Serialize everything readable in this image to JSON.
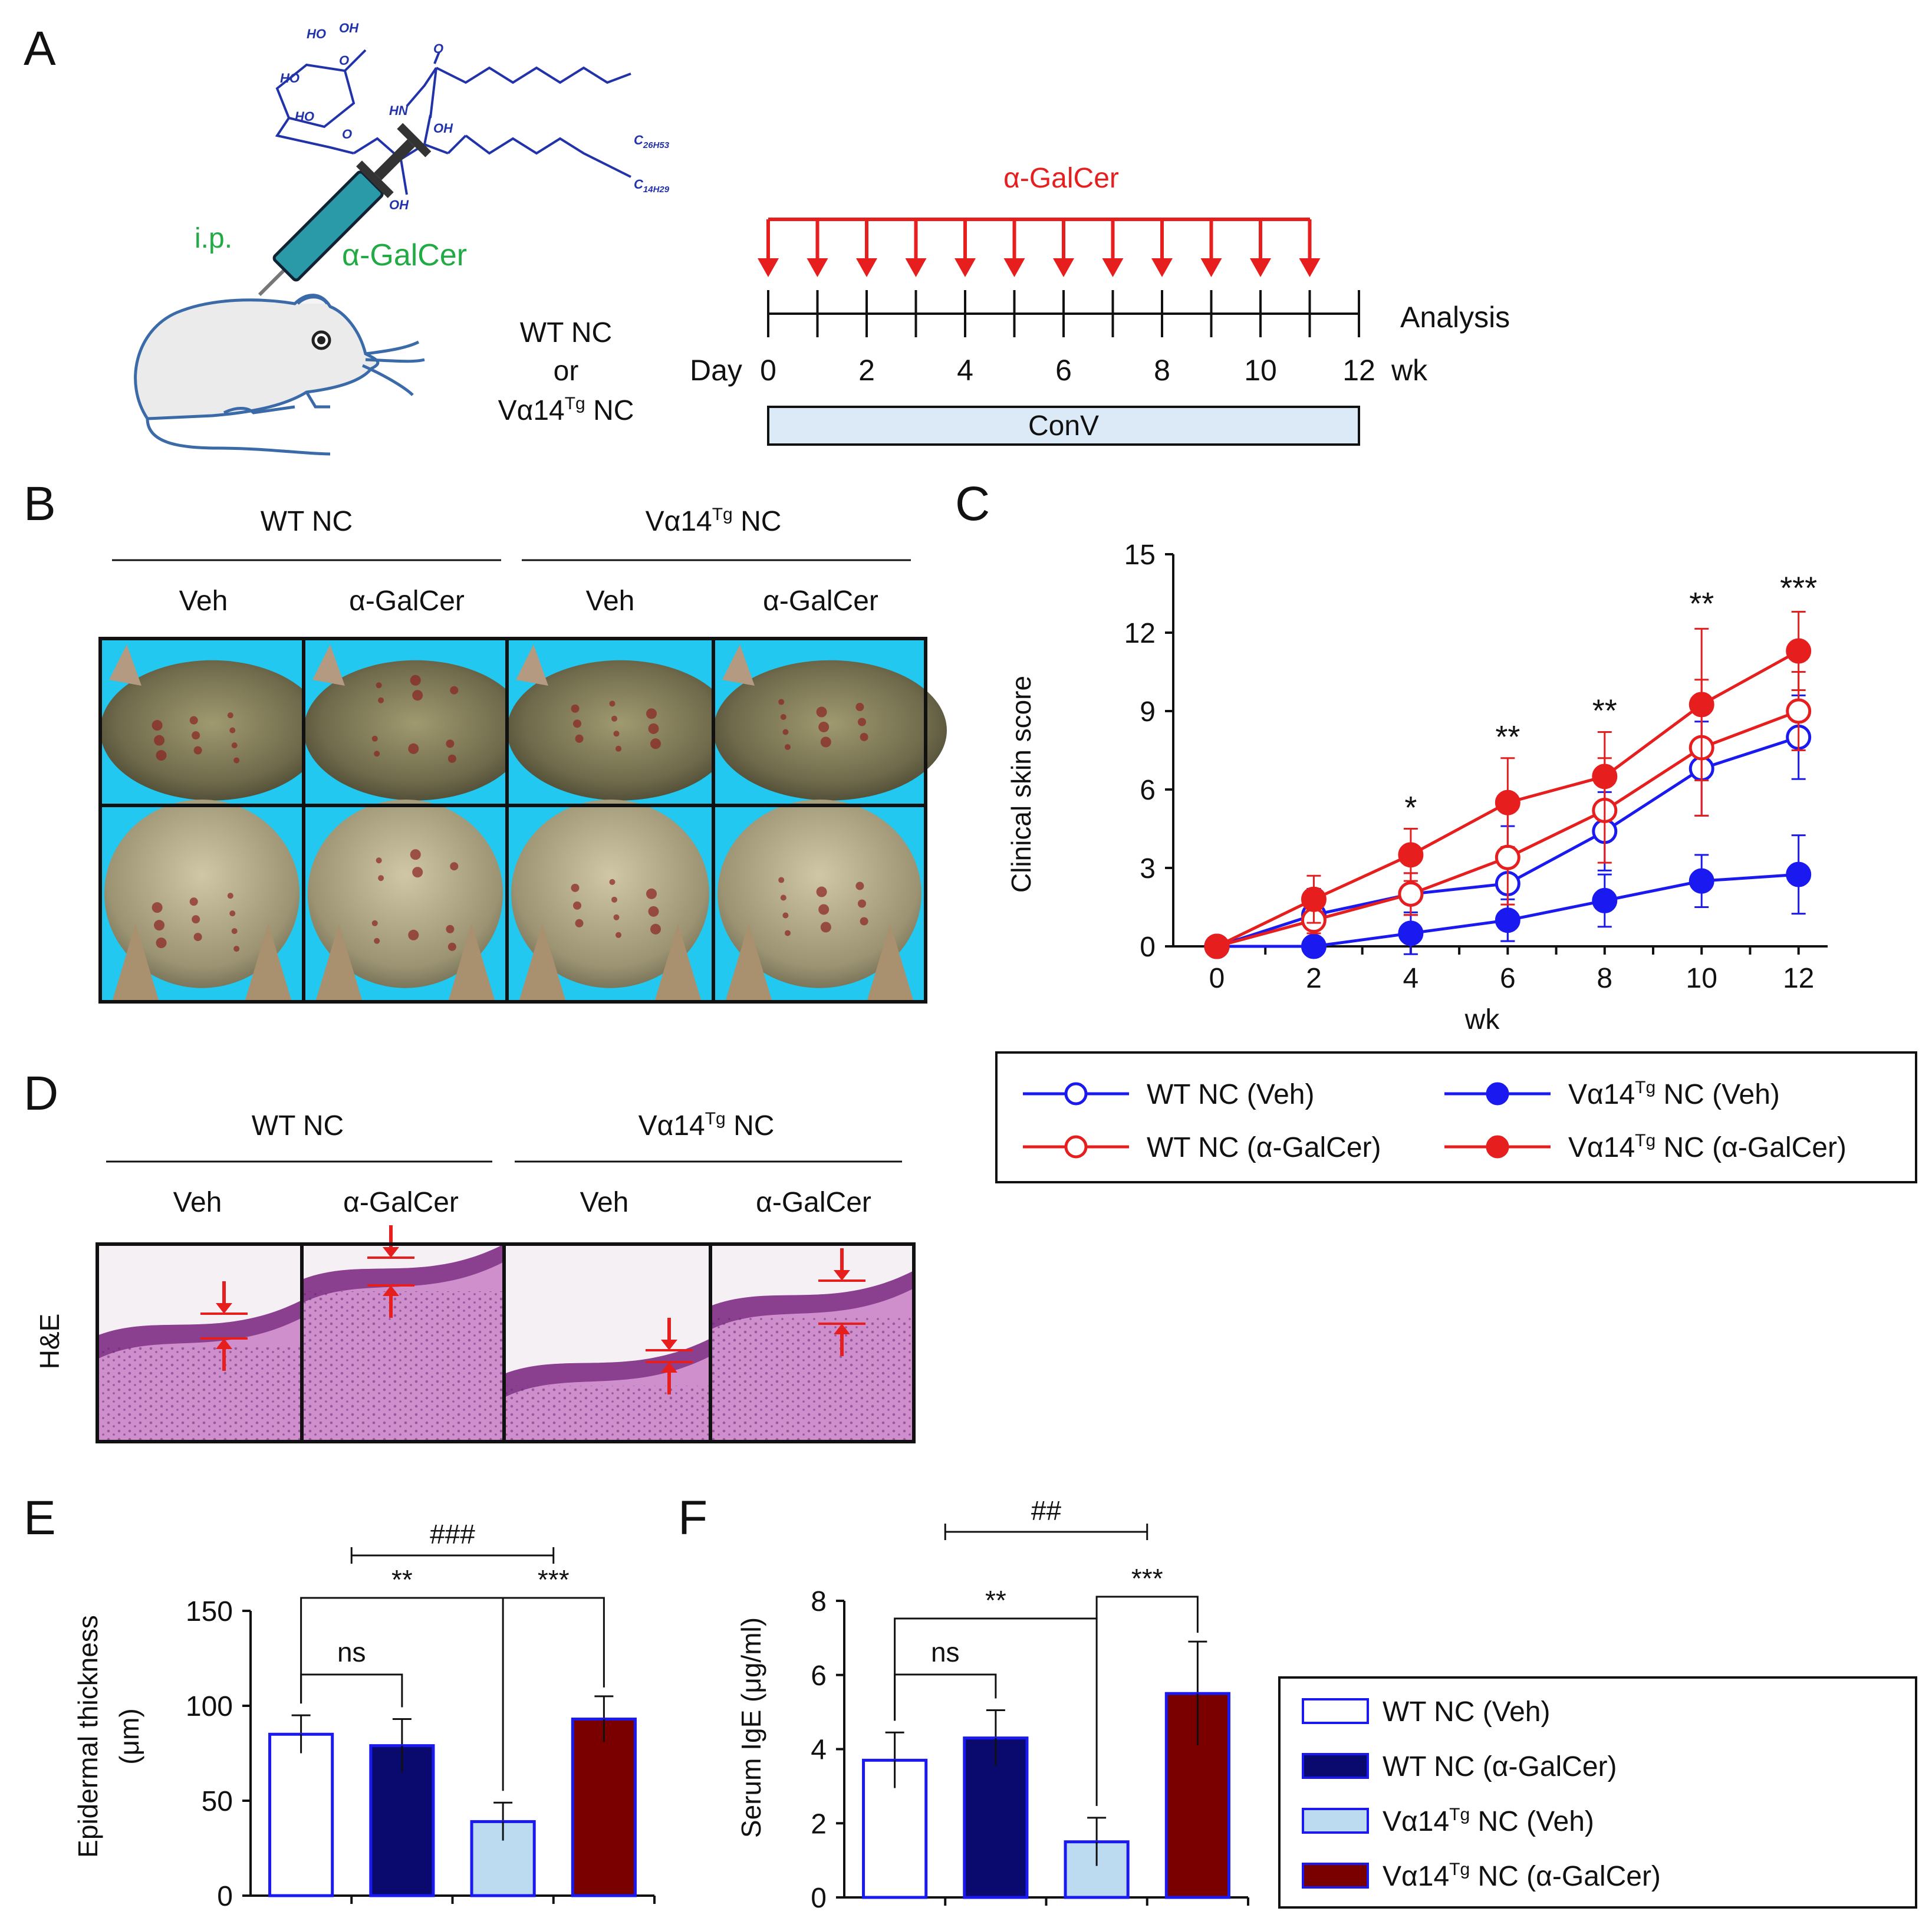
{
  "panels": {
    "A": "A",
    "B": "B",
    "C": "C",
    "D": "D",
    "E": "E",
    "F": "F"
  },
  "colors": {
    "blue": "#1a1af0",
    "red": "#e61e1e",
    "navy": "#0a0a6e",
    "lightblue": "#bcdaf0",
    "maroon": "#7a0000",
    "teal": "#2a9aa8",
    "sky": "#22c8f0",
    "schematic_green": "#22aa44",
    "molecule": "#2233aa"
  },
  "panelA": {
    "route": "i.p.",
    "drug": "α-GalCer",
    "group_line1": "WT NC",
    "group_line2": "or",
    "group_line3": "Vα14",
    "group_line3_sup": "Tg",
    "group_line3_tail": " NC",
    "timeline_title": "α-GalCer",
    "analysis": "Analysis",
    "day_label": "Day",
    "ticks": [
      "0",
      "2",
      "4",
      "6",
      "8",
      "10",
      "12"
    ],
    "unit": "wk",
    "bar_label": "ConV",
    "injection_weeks": [
      0,
      1,
      2,
      3,
      4,
      5,
      6,
      7,
      8,
      9,
      10,
      11
    ],
    "molecule_labels": {
      "ho1": "HO",
      "oh1": "OH",
      "ho2": "HO",
      "o1": "O",
      "ho3": "HO",
      "o2": "O",
      "hn": "HN",
      "o3": "O",
      "oh2": "OH",
      "oh3": "OH",
      "c1": "C",
      "c1_sub": "26H53",
      "c2": "C",
      "c2_sub": "14H29"
    }
  },
  "panelB": {
    "group1": "WT NC",
    "group2_main": "Vα14",
    "group2_sup": "Tg",
    "group2_tail": " NC",
    "treatments": [
      "Veh",
      "α-GalCer",
      "Veh",
      "α-GalCer"
    ]
  },
  "panelD": {
    "group1": "WT NC",
    "group2_main": "Vα14",
    "group2_sup": "Tg",
    "group2_tail": " NC",
    "treatments": [
      "Veh",
      "α-GalCer",
      "Veh",
      "α-GalCer"
    ],
    "stain": "H&E"
  },
  "legendC": [
    {
      "main": "WT NC (Veh)",
      "sup": "",
      "tail": ""
    },
    {
      "main": "Vα14",
      "sup": "Tg",
      "tail": " NC (Veh)"
    },
    {
      "main": "WT NC (α-GalCer)",
      "sup": "",
      "tail": ""
    },
    {
      "main": "Vα14",
      "sup": "Tg",
      "tail": " NC (α-GalCer)"
    }
  ],
  "legendEF": [
    {
      "main": "WT NC (Veh)",
      "sup": "",
      "tail": ""
    },
    {
      "main": "WT NC (α-GalCer)",
      "sup": "",
      "tail": ""
    },
    {
      "main": "Vα14",
      "sup": "Tg",
      "tail": " NC (Veh)"
    },
    {
      "main": "Vα14",
      "sup": "Tg",
      "tail": " NC (α-GalCer)"
    }
  ],
  "chart_data": [
    {
      "id": "C",
      "type": "line",
      "xlabel": "wk",
      "ylabel": "Clinical skin score",
      "x": [
        0,
        2,
        4,
        6,
        8,
        10,
        12
      ],
      "xticks": [
        "0",
        "2",
        "4",
        "6",
        "8",
        "10",
        "12"
      ],
      "ylim": [
        0,
        15
      ],
      "yticks": [
        "0",
        "3",
        "6",
        "9",
        "12",
        "15"
      ],
      "series": [
        {
          "name": "WT NC (Veh)",
          "color": "#1a1af0",
          "filled": false,
          "values": [
            0,
            1.2,
            2.0,
            2.4,
            4.4,
            6.8,
            8.0
          ],
          "errors": [
            0,
            1.0,
            0.8,
            2.2,
            1.5,
            1.8,
            1.6
          ]
        },
        {
          "name": "Vα14Tg NC (Veh)",
          "color": "#1a1af0",
          "filled": true,
          "values": [
            0,
            0,
            0.5,
            1.0,
            1.75,
            2.5,
            2.75
          ],
          "errors": [
            0,
            0,
            0.8,
            0.8,
            1.0,
            1.0,
            1.5
          ]
        },
        {
          "name": "WT NC (α-GalCer)",
          "color": "#e61e1e",
          "filled": false,
          "values": [
            0,
            1.0,
            2.0,
            3.4,
            5.2,
            7.6,
            9.0
          ],
          "errors": [
            0,
            0.5,
            0.8,
            1.8,
            2.0,
            2.6,
            1.5
          ]
        },
        {
          "name": "Vα14Tg NC (α-GalCer)",
          "color": "#e61e1e",
          "filled": true,
          "values": [
            0,
            1.8,
            3.5,
            5.5,
            6.5,
            9.25,
            11.3
          ],
          "errors": [
            0,
            0.9,
            1.0,
            1.7,
            1.7,
            2.9,
            1.5
          ]
        }
      ],
      "annotations": [
        {
          "x": 4,
          "y": 4.9,
          "text": "*"
        },
        {
          "x": 6,
          "y": 7.6,
          "text": "**"
        },
        {
          "x": 8,
          "y": 8.6,
          "text": "**"
        },
        {
          "x": 10,
          "y": 12.7,
          "text": "**"
        },
        {
          "x": 12,
          "y": 13.3,
          "text": "***"
        }
      ]
    },
    {
      "id": "E",
      "type": "bar",
      "ylabel": "Epidermal thickness",
      "ylabel2": "(μm)",
      "categories": [
        "WT NC (Veh)",
        "WT NC (α-GalCer)",
        "Vα14Tg NC (Veh)",
        "Vα14Tg NC (α-GalCer)"
      ],
      "values": [
        85,
        79,
        39,
        93
      ],
      "errors": [
        10,
        14,
        10,
        12
      ],
      "colors": [
        "#ffffff",
        "#0a0a6e",
        "#bcdaf0",
        "#7a0000"
      ],
      "ylim": [
        0,
        150
      ],
      "yticks": [
        "0",
        "50",
        "100",
        "150"
      ],
      "stats": {
        "hash": "###",
        "ns": "ns",
        "left": "**",
        "right": "***"
      }
    },
    {
      "id": "F",
      "type": "bar",
      "ylabel": "Serum IgE (μg/ml)",
      "categories": [
        "WT NC (Veh)",
        "WT NC (α-GalCer)",
        "Vα14Tg NC (Veh)",
        "Vα14Tg NC (α-GalCer)"
      ],
      "values": [
        3.7,
        4.3,
        1.5,
        5.5
      ],
      "errors": [
        0.75,
        0.75,
        0.65,
        1.4
      ],
      "colors": [
        "#ffffff",
        "#0a0a6e",
        "#bcdaf0",
        "#7a0000"
      ],
      "ylim": [
        0,
        8
      ],
      "yticks": [
        "0",
        "2",
        "4",
        "6",
        "8"
      ],
      "stats": {
        "hash": "##",
        "ns": "ns",
        "left": "**",
        "right": "***"
      }
    }
  ]
}
